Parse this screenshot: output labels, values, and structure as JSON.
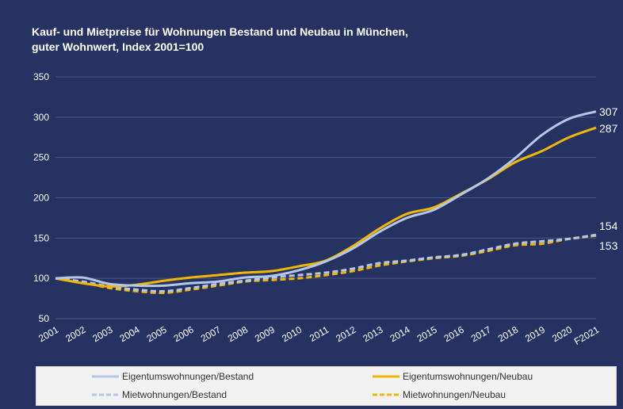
{
  "title_lines": [
    "Kauf- und Mietpreise für Wohnungen Bestand und Neubau in München,",
    "guter Wohnwert, Index 2001=100"
  ],
  "colors": {
    "background": "#263362",
    "grid": "#4a5683",
    "axis_text": "#ffffff",
    "bestand": "#b4c7e7",
    "neubau": "#f2b705"
  },
  "chart_data": {
    "type": "line",
    "title": "Kauf- und Mietpreise für Wohnungen Bestand und Neubau in München, guter Wohnwert, Index 2001=100",
    "xlabel": "",
    "ylabel": "",
    "categories": [
      "2001",
      "2002",
      "2003",
      "2004",
      "2005",
      "2006",
      "2007",
      "2008",
      "2009",
      "2010",
      "2011",
      "2012",
      "2013",
      "2014",
      "2015",
      "2016",
      "2017",
      "2018",
      "2019",
      "2020",
      "F2021"
    ],
    "ylim": [
      50,
      350
    ],
    "yticks": [
      50,
      100,
      150,
      200,
      250,
      300,
      350
    ],
    "grid": true,
    "legend_position": "bottom",
    "series": [
      {
        "name": "Eigentumswohnungen/Bestand",
        "style": "solid",
        "color": "#b4c7e7",
        "values": [
          100,
          101,
          93,
          91,
          91,
          94,
          96,
          101,
          103,
          110,
          121,
          137,
          158,
          175,
          185,
          204,
          224,
          249,
          278,
          298,
          307
        ],
        "end_label": "307"
      },
      {
        "name": "Eigentumswohnungen/Neubau",
        "style": "solid",
        "color": "#f2b705",
        "values": [
          100,
          94,
          90,
          92,
          97,
          101,
          104,
          107,
          109,
          115,
          122,
          140,
          162,
          180,
          188,
          205,
          223,
          244,
          258,
          275,
          287
        ],
        "end_label": "287"
      },
      {
        "name": "Mietwohnungen/Bestand",
        "style": "dashed",
        "color": "#b4c7e7",
        "values": [
          100,
          96,
          90,
          86,
          84,
          88,
          93,
          97,
          101,
          104,
          107,
          112,
          119,
          122,
          126,
          129,
          136,
          143,
          146,
          149,
          154
        ],
        "end_label": "154"
      },
      {
        "name": "Mietwohnungen/Neubau",
        "style": "dashed",
        "color": "#f2b705",
        "values": [
          100,
          95,
          88,
          84,
          82,
          86,
          91,
          96,
          98,
          100,
          104,
          109,
          116,
          121,
          125,
          128,
          134,
          141,
          143,
          149,
          153
        ],
        "end_label": "153"
      }
    ]
  }
}
